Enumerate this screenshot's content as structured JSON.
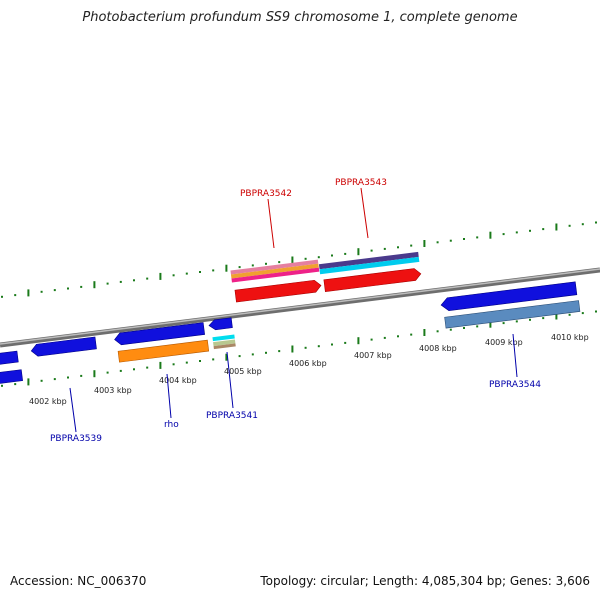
{
  "title": "Photobacterium profundum SS9 chromosome 1, complete genome",
  "footer": {
    "accession": "Accession: NC_006370",
    "stats": "Topology: circular; Length: 4,085,304 bp; Genes: 3,606"
  },
  "scale_labels": [
    "4002 kbp",
    "4003 kbp",
    "4004 kbp",
    "4005 kbp",
    "4006 kbp",
    "4007 kbp",
    "4008 kbp",
    "4009 kbp",
    "4010 kbp"
  ],
  "genes": {
    "forward": [
      "PBPRA3542",
      "PBPRA3543"
    ],
    "reverse": [
      "PBPRA3539",
      "rho",
      "PBPRA3541",
      "PBPRA3544"
    ]
  },
  "colors": {
    "forward_label": "#cc0000",
    "reverse_label": "#0000aa",
    "tick": "#1a7a1a",
    "backbone": "#888888"
  }
}
